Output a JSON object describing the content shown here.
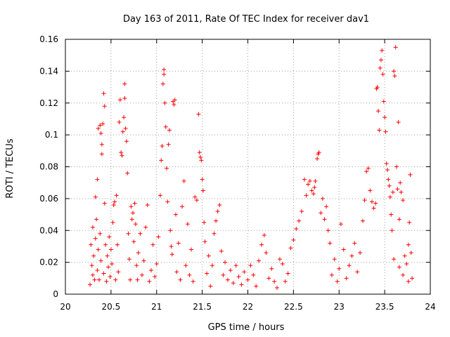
{
  "chart_data": {
    "type": "scatter",
    "title": "Day 163 of 2011, Rate Of TEC Index for receiver dav1",
    "xlabel": "GPS time / hours",
    "ylabel": "ROTI / TECUs",
    "xlim": [
      20,
      24
    ],
    "ylim": [
      0,
      0.16
    ],
    "xticks": [
      20,
      20.5,
      21,
      21.5,
      22,
      22.5,
      23,
      23.5,
      24
    ],
    "xtick_labels": [
      "20",
      "20.5",
      "21",
      "21.5",
      "22",
      "22.5",
      "23",
      "23.5",
      "24"
    ],
    "yticks": [
      0,
      0.02,
      0.04,
      0.06,
      0.08,
      0.1,
      0.12,
      0.14,
      0.16
    ],
    "ytick_labels": [
      "0",
      "0.02",
      "0.04",
      "0.06",
      "0.08",
      "0.1",
      "0.12",
      "0.14",
      "0.16"
    ],
    "grid": true,
    "marker": "plus",
    "color": "#ff0000",
    "series": [
      {
        "name": "dav1",
        "points": [
          [
            20.27,
            0.006
          ],
          [
            20.28,
            0.031
          ],
          [
            20.29,
            0.018
          ],
          [
            20.3,
            0.012
          ],
          [
            20.3,
            0.042
          ],
          [
            20.31,
            0.024
          ],
          [
            20.32,
            0.009
          ],
          [
            20.33,
            0.061
          ],
          [
            20.33,
            0.035
          ],
          [
            20.34,
            0.047
          ],
          [
            20.35,
            0.072
          ],
          [
            20.35,
            0.015
          ],
          [
            20.36,
            0.028
          ],
          [
            20.36,
            0.104
          ],
          [
            20.37,
            0.009
          ],
          [
            20.38,
            0.106
          ],
          [
            20.38,
            0.038
          ],
          [
            20.39,
            0.021
          ],
          [
            20.39,
            0.101
          ],
          [
            20.4,
            0.088
          ],
          [
            20.4,
            0.094
          ],
          [
            20.41,
            0.107
          ],
          [
            20.42,
            0.126
          ],
          [
            20.42,
            0.013
          ],
          [
            20.43,
            0.118
          ],
          [
            20.43,
            0.057
          ],
          [
            20.44,
            0.031
          ],
          [
            20.45,
            0.008
          ],
          [
            20.46,
            0.024
          ],
          [
            20.47,
            0.017
          ],
          [
            20.48,
            0.036
          ],
          [
            20.49,
            0.011
          ],
          [
            20.5,
            0.028
          ],
          [
            20.51,
            0.019
          ],
          [
            20.52,
            0.045
          ],
          [
            20.53,
            0.056
          ],
          [
            20.54,
            0.058
          ],
          [
            20.55,
            0.009
          ],
          [
            20.56,
            0.062
          ],
          [
            20.57,
            0.031
          ],
          [
            20.58,
            0.014
          ],
          [
            20.59,
            0.108
          ],
          [
            20.6,
            0.122
          ],
          [
            20.61,
            0.089
          ],
          [
            20.62,
            0.087
          ],
          [
            20.63,
            0.102
          ],
          [
            20.64,
            0.111
          ],
          [
            20.65,
            0.132
          ],
          [
            20.65,
            0.123
          ],
          [
            20.66,
            0.104
          ],
          [
            20.67,
            0.096
          ],
          [
            20.68,
            0.076
          ],
          [
            20.69,
            0.038
          ],
          [
            20.7,
            0.022
          ],
          [
            20.71,
            0.009
          ],
          [
            20.72,
            0.055
          ],
          [
            20.73,
            0.047
          ],
          [
            20.74,
            0.051
          ],
          [
            20.75,
            0.033
          ],
          [
            20.76,
            0.057
          ],
          [
            20.77,
            0.044
          ],
          [
            20.78,
            0.018
          ],
          [
            20.79,
            0.009
          ],
          [
            20.8,
            0.026
          ],
          [
            20.82,
            0.038
          ],
          [
            20.84,
            0.012
          ],
          [
            20.86,
            0.021
          ],
          [
            20.88,
            0.042
          ],
          [
            20.9,
            0.056
          ],
          [
            20.92,
            0.008
          ],
          [
            20.94,
            0.015
          ],
          [
            20.96,
            0.031
          ],
          [
            20.98,
            0.011
          ],
          [
            21.0,
            0.019
          ],
          [
            21.02,
            0.036
          ],
          [
            21.04,
            0.062
          ],
          [
            21.05,
            0.084
          ],
          [
            21.06,
            0.093
          ],
          [
            21.07,
            0.132
          ],
          [
            21.08,
            0.138
          ],
          [
            21.08,
            0.141
          ],
          [
            21.09,
            0.12
          ],
          [
            21.1,
            0.105
          ],
          [
            21.11,
            0.079
          ],
          [
            21.12,
            0.058
          ],
          [
            21.13,
            0.094
          ],
          [
            21.14,
            0.103
          ],
          [
            21.15,
            0.04
          ],
          [
            21.16,
            0.03
          ],
          [
            21.17,
            0.025
          ],
          [
            21.18,
            0.121
          ],
          [
            21.19,
            0.119
          ],
          [
            21.2,
            0.122
          ],
          [
            21.21,
            0.05
          ],
          [
            21.22,
            0.014
          ],
          [
            21.24,
            0.032
          ],
          [
            21.26,
            0.009
          ],
          [
            21.28,
            0.055
          ],
          [
            21.3,
            0.071
          ],
          [
            21.32,
            0.018
          ],
          [
            21.34,
            0.044
          ],
          [
            21.36,
            0.012
          ],
          [
            21.38,
            0.028
          ],
          [
            21.4,
            0.008
          ],
          [
            21.42,
            0.061
          ],
          [
            21.44,
            0.059
          ],
          [
            21.46,
            0.113
          ],
          [
            21.47,
            0.089
          ],
          [
            21.48,
            0.086
          ],
          [
            21.49,
            0.084
          ],
          [
            21.5,
            0.072
          ],
          [
            21.51,
            0.065
          ],
          [
            21.52,
            0.045
          ],
          [
            21.53,
            0.033
          ],
          [
            21.55,
            0.013
          ],
          [
            21.57,
            0.024
          ],
          [
            21.59,
            0.005
          ],
          [
            21.61,
            0.018
          ],
          [
            21.63,
            0.038
          ],
          [
            21.65,
            0.046
          ],
          [
            21.67,
            0.052
          ],
          [
            21.69,
            0.056
          ],
          [
            21.71,
            0.027
          ],
          [
            21.73,
            0.012
          ],
          [
            21.75,
            0.02
          ],
          [
            21.78,
            0.009
          ],
          [
            21.81,
            0.015
          ],
          [
            21.84,
            0.007
          ],
          [
            21.87,
            0.018
          ],
          [
            21.9,
            0.011
          ],
          [
            21.93,
            0.006
          ],
          [
            21.96,
            0.014
          ],
          [
            22.0,
            0.009
          ],
          [
            22.03,
            0.018
          ],
          [
            22.06,
            0.012
          ],
          [
            22.09,
            0.005
          ],
          [
            22.12,
            0.021
          ],
          [
            22.15,
            0.031
          ],
          [
            22.18,
            0.037
          ],
          [
            22.2,
            0.026
          ],
          [
            22.23,
            0.01
          ],
          [
            22.26,
            0.016
          ],
          [
            22.29,
            0.008
          ],
          [
            22.32,
            0.004
          ],
          [
            22.35,
            0.022
          ],
          [
            22.38,
            0.019
          ],
          [
            22.41,
            0.008
          ],
          [
            22.44,
            0.013
          ],
          [
            22.47,
            0.029
          ],
          [
            22.5,
            0.034
          ],
          [
            22.53,
            0.041
          ],
          [
            22.56,
            0.046
          ],
          [
            22.59,
            0.052
          ],
          [
            22.62,
            0.072
          ],
          [
            22.64,
            0.062
          ],
          [
            22.66,
            0.069
          ],
          [
            22.68,
            0.071
          ],
          [
            22.7,
            0.065
          ],
          [
            22.72,
            0.063
          ],
          [
            22.73,
            0.067
          ],
          [
            22.74,
            0.071
          ],
          [
            22.76,
            0.085
          ],
          [
            22.77,
            0.088
          ],
          [
            22.78,
            0.089
          ],
          [
            22.8,
            0.051
          ],
          [
            22.82,
            0.06
          ],
          [
            22.84,
            0.047
          ],
          [
            22.86,
            0.055
          ],
          [
            22.88,
            0.04
          ],
          [
            22.9,
            0.032
          ],
          [
            22.92,
            0.012
          ],
          [
            22.95,
            0.022
          ],
          [
            22.98,
            0.008
          ],
          [
            23.0,
            0.016
          ],
          [
            23.02,
            0.044
          ],
          [
            23.05,
            0.028
          ],
          [
            23.08,
            0.01
          ],
          [
            23.11,
            0.018
          ],
          [
            23.14,
            0.024
          ],
          [
            23.17,
            0.032
          ],
          [
            23.2,
            0.014
          ],
          [
            23.23,
            0.026
          ],
          [
            23.26,
            0.046
          ],
          [
            23.28,
            0.059
          ],
          [
            23.3,
            0.077
          ],
          [
            23.32,
            0.079
          ],
          [
            23.34,
            0.065
          ],
          [
            23.36,
            0.058
          ],
          [
            23.38,
            0.054
          ],
          [
            23.4,
            0.057
          ],
          [
            23.41,
            0.129
          ],
          [
            23.42,
            0.13
          ],
          [
            23.43,
            0.115
          ],
          [
            23.44,
            0.103
          ],
          [
            23.45,
            0.142
          ],
          [
            23.46,
            0.147
          ],
          [
            23.47,
            0.153
          ],
          [
            23.48,
            0.138
          ],
          [
            23.49,
            0.121
          ],
          [
            23.5,
            0.111
          ],
          [
            23.51,
            0.102
          ],
          [
            23.52,
            0.082
          ],
          [
            23.53,
            0.078
          ],
          [
            23.54,
            0.072
          ],
          [
            23.55,
            0.068
          ],
          [
            23.56,
            0.061
          ],
          [
            23.57,
            0.05
          ],
          [
            23.58,
            0.04
          ],
          [
            23.59,
            0.064
          ],
          [
            23.6,
            0.14
          ],
          [
            23.61,
            0.137
          ],
          [
            23.62,
            0.155
          ],
          [
            23.63,
            0.08
          ],
          [
            23.64,
            0.066
          ],
          [
            23.65,
            0.108
          ],
          [
            23.66,
            0.047
          ],
          [
            23.67,
            0.07
          ],
          [
            23.68,
            0.064
          ],
          [
            23.7,
            0.059
          ],
          [
            23.72,
            0.024
          ],
          [
            23.74,
            0.019
          ],
          [
            23.76,
            0.031
          ],
          [
            23.77,
            0.045
          ],
          [
            23.78,
            0.075
          ],
          [
            23.79,
            0.026
          ],
          [
            23.8,
            0.01
          ],
          [
            23.76,
            0.008
          ],
          [
            23.7,
            0.012
          ],
          [
            23.66,
            0.017
          ],
          [
            23.6,
            0.022
          ]
        ]
      }
    ]
  }
}
